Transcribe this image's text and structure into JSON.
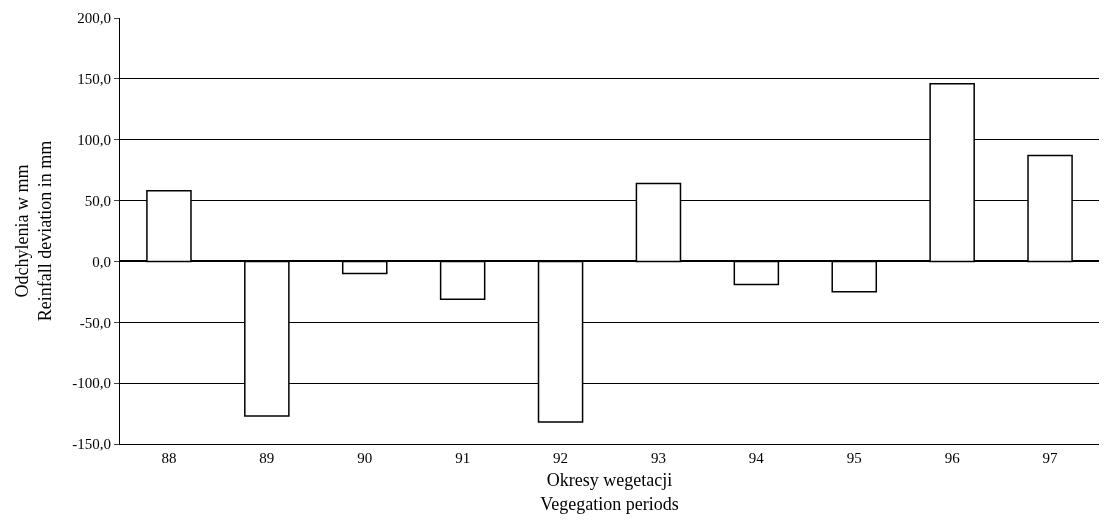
{
  "chart_data": {
    "type": "bar",
    "xlabel": "Okresy wegetacji\nVegegation periods",
    "ylabel": "Odchylenia w mm\nReinfall deviation in mm",
    "categories": [
      "88",
      "89",
      "90",
      "91",
      "92",
      "93",
      "94",
      "95",
      "96",
      "97"
    ],
    "series": [
      {
        "color": "#ffffff",
        "values": [
          58,
          -127,
          -10,
          -31,
          -132,
          64,
          -19,
          -25,
          146,
          87
        ]
      }
    ],
    "ylim": [
      -150,
      200
    ],
    "yticks": [
      {
        "value": -150,
        "label": "-150,0"
      },
      {
        "value": -100,
        "label": "-100,0"
      },
      {
        "value": -50,
        "label": "-50,0"
      },
      {
        "value": 0,
        "label": "0,0"
      },
      {
        "value": 50,
        "label": "50,0"
      },
      {
        "value": 100,
        "label": "100,0"
      },
      {
        "value": 150,
        "label": "150,0"
      },
      {
        "value": 200,
        "label": "200,0"
      }
    ],
    "grid": "y",
    "legend": false
  }
}
